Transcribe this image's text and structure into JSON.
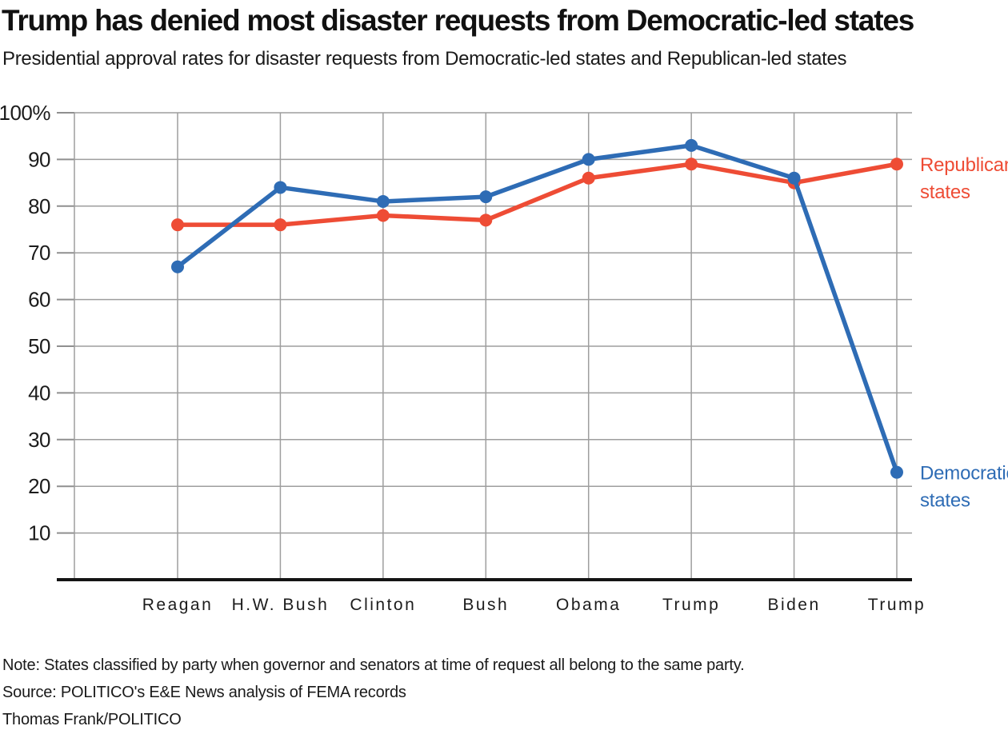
{
  "header": {
    "title": "Trump has denied most disaster requests from Democratic-led states",
    "subtitle": "Presidential approval rates for disaster requests from Democratic-led states and Republican-led states"
  },
  "chart_data": {
    "type": "line",
    "categories": [
      "Reagan",
      "H.W. Bush",
      "Clinton",
      "Bush",
      "Obama",
      "Trump",
      "Biden",
      "Trump"
    ],
    "series": [
      {
        "name": "Democratic states",
        "label_lines": [
          "Democratic",
          "states"
        ],
        "color": "#2e6cb5",
        "values": [
          67,
          84,
          81,
          82,
          90,
          93,
          86,
          23
        ]
      },
      {
        "name": "Republican states",
        "label_lines": [
          "Republican",
          "states"
        ],
        "color": "#ee4c35",
        "values": [
          76,
          76,
          78,
          77,
          86,
          89,
          85,
          89
        ]
      }
    ],
    "ylim": [
      0,
      100
    ],
    "y_ticks": [
      10,
      20,
      30,
      40,
      50,
      60,
      70,
      80,
      90,
      100
    ],
    "y_top_tick_label": "100%",
    "grid": true,
    "gridline_color": "#9e9e9e",
    "tick_color": "#8f8f8f",
    "axis_color": "#141414",
    "legend_position": "right-of-last-point"
  },
  "footer": {
    "note": "Note: States classified by party when governor and senators at time of request all belong to the same party.",
    "source": "Source: POLITICO's E&E News analysis of FEMA records",
    "byline": "Thomas Frank/POLITICO"
  }
}
